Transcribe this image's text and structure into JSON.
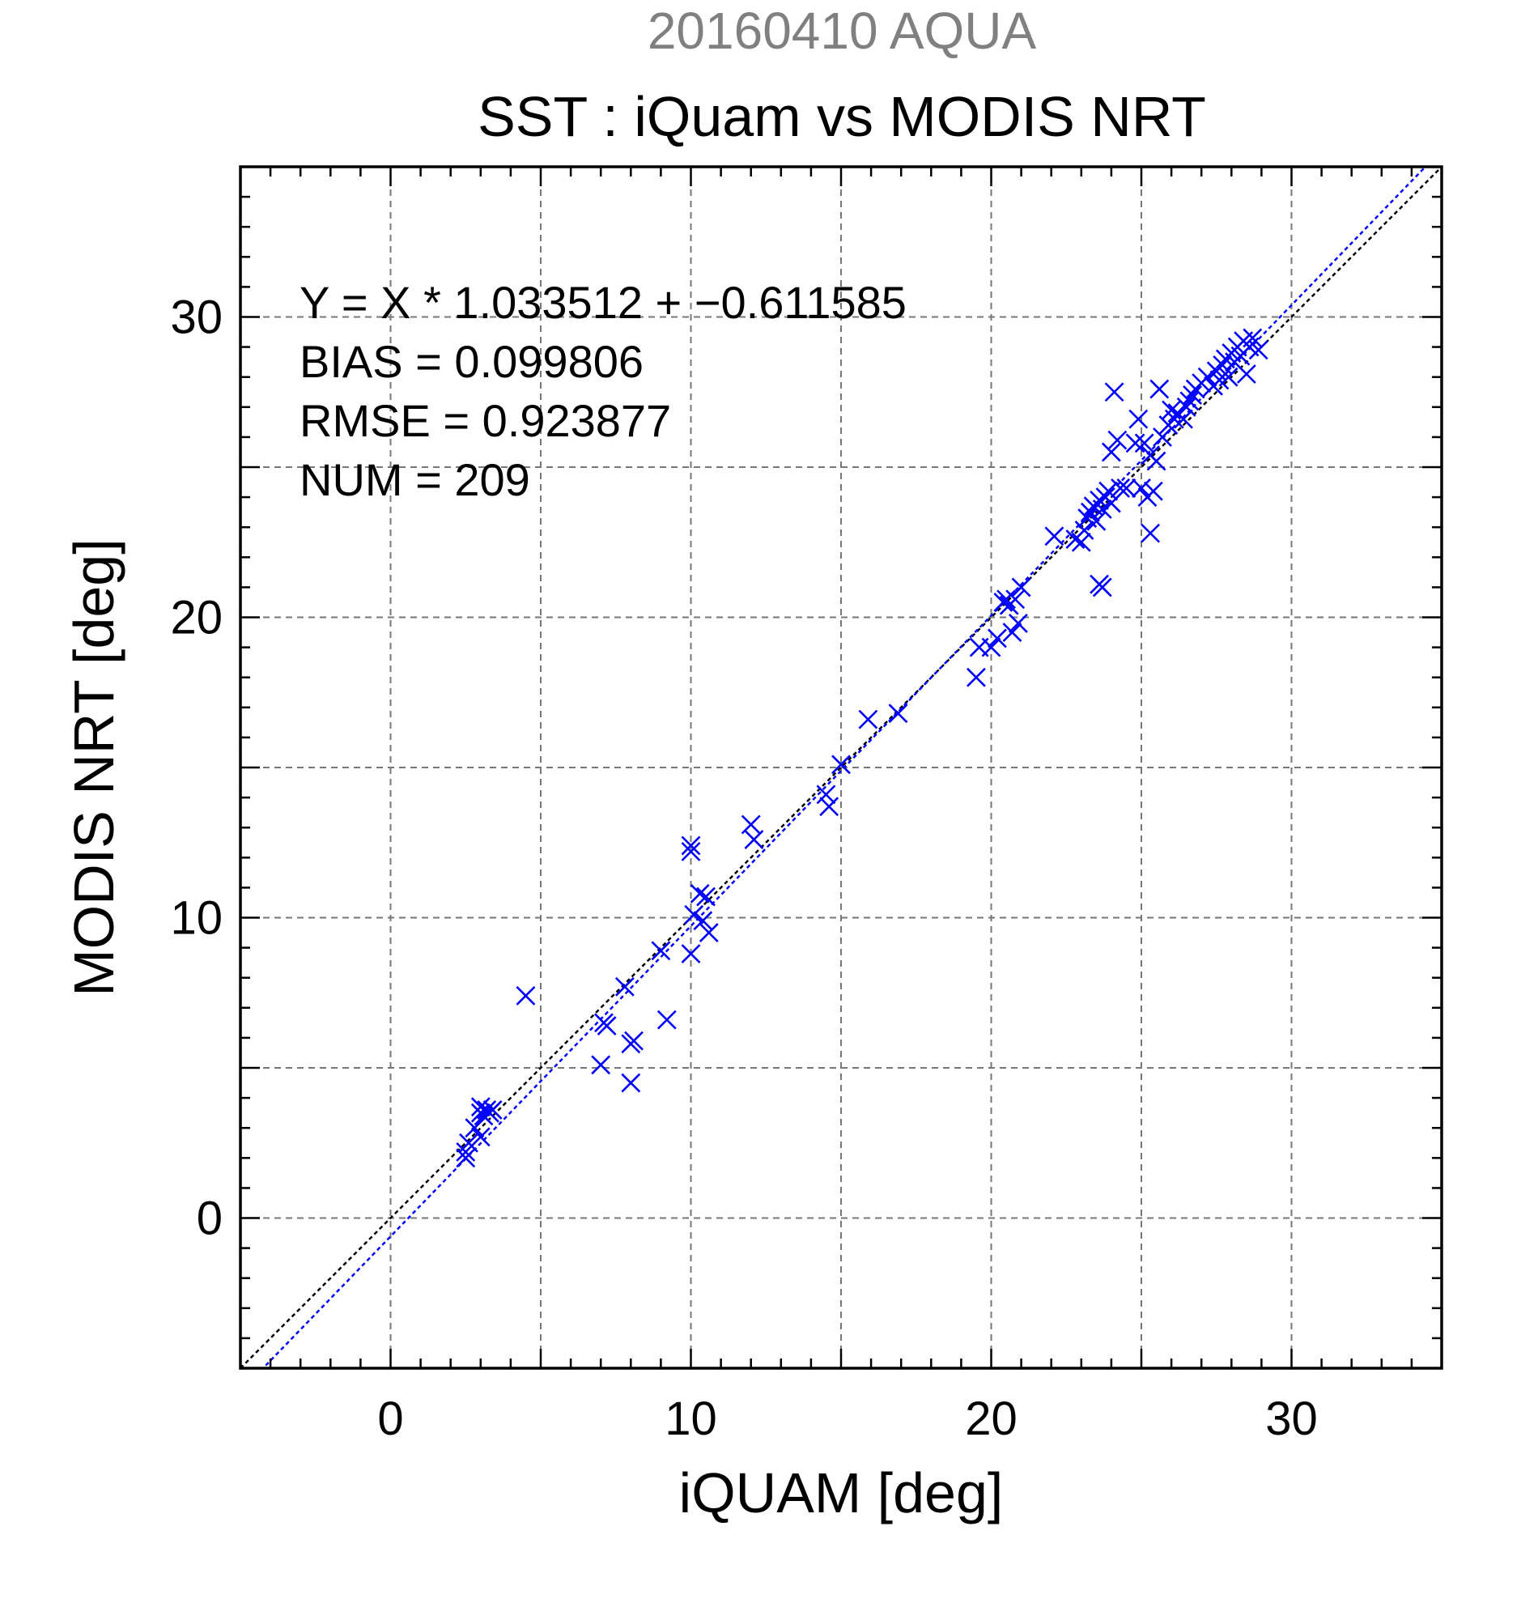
{
  "chart_data": {
    "type": "scatter",
    "supertitle": "20160410 AQUA",
    "title": "SST : iQuam vs MODIS NRT",
    "xlabel": "iQUAM [deg]",
    "ylabel": "MODIS NRT [deg]",
    "xlim": [
      -5,
      35
    ],
    "ylim": [
      -5,
      35
    ],
    "xticks": [
      0,
      10,
      20,
      30
    ],
    "yticks": [
      0,
      10,
      20,
      30
    ],
    "grid": true,
    "stats": [
      "Y = X * 1.033512 + −0.611585",
      "BIAS = 0.099806",
      "RMSE = 0.923877",
      "NUM = 209"
    ],
    "lines": [
      {
        "kind": "1:1",
        "slope": 1,
        "intercept": 0,
        "color": "#000000"
      },
      {
        "kind": "fit",
        "slope": 1.033512,
        "intercept": -0.611585,
        "color": "#0000ff"
      }
    ],
    "marker_color": "#0000ff",
    "points": [
      [
        2.5,
        2.0
      ],
      [
        2.5,
        2.2
      ],
      [
        2.6,
        2.5
      ],
      [
        2.8,
        3.0
      ],
      [
        3.0,
        3.5
      ],
      [
        3.0,
        3.7
      ],
      [
        3.1,
        3.4
      ],
      [
        3.2,
        3.6
      ],
      [
        3.3,
        3.5
      ],
      [
        3.4,
        3.6
      ],
      [
        3.0,
        2.7
      ],
      [
        4.5,
        7.4
      ],
      [
        7.0,
        5.1
      ],
      [
        7.1,
        6.5
      ],
      [
        7.2,
        6.4
      ],
      [
        7.8,
        7.7
      ],
      [
        8.0,
        5.8
      ],
      [
        8.1,
        5.9
      ],
      [
        8.0,
        4.5
      ],
      [
        9.0,
        8.9
      ],
      [
        9.2,
        6.6
      ],
      [
        10.0,
        12.4
      ],
      [
        10.0,
        12.2
      ],
      [
        10.0,
        8.8
      ],
      [
        10.1,
        10.1
      ],
      [
        10.3,
        10.8
      ],
      [
        10.4,
        9.9
      ],
      [
        10.5,
        10.7
      ],
      [
        10.6,
        9.5
      ],
      [
        12.0,
        13.1
      ],
      [
        12.1,
        12.6
      ],
      [
        14.5,
        14.1
      ],
      [
        14.6,
        13.7
      ],
      [
        15.0,
        15.1
      ],
      [
        15.9,
        16.6
      ],
      [
        16.9,
        16.8
      ],
      [
        19.5,
        18.0
      ],
      [
        19.6,
        19.0
      ],
      [
        20.0,
        19.0
      ],
      [
        20.2,
        19.3
      ],
      [
        20.4,
        20.5
      ],
      [
        20.5,
        20.6
      ],
      [
        20.6,
        20.4
      ],
      [
        20.7,
        19.5
      ],
      [
        20.8,
        20.6
      ],
      [
        20.9,
        19.8
      ],
      [
        21.0,
        21.0
      ],
      [
        22.1,
        22.7
      ],
      [
        22.8,
        22.6
      ],
      [
        23.0,
        22.5
      ],
      [
        23.1,
        22.9
      ],
      [
        23.2,
        23.3
      ],
      [
        23.3,
        23.5
      ],
      [
        23.4,
        23.7
      ],
      [
        23.5,
        23.2
      ],
      [
        23.6,
        23.9
      ],
      [
        23.7,
        23.6
      ],
      [
        23.6,
        21.1
      ],
      [
        23.7,
        21.0
      ],
      [
        23.8,
        24.0
      ],
      [
        23.9,
        24.2
      ],
      [
        24.0,
        23.8
      ],
      [
        24.0,
        25.5
      ],
      [
        24.1,
        27.5
      ],
      [
        24.2,
        25.9
      ],
      [
        24.3,
        24.3
      ],
      [
        24.5,
        24.3
      ],
      [
        24.8,
        25.8
      ],
      [
        24.9,
        26.6
      ],
      [
        25.0,
        24.3
      ],
      [
        25.1,
        25.8
      ],
      [
        25.2,
        24.0
      ],
      [
        25.3,
        25.4
      ],
      [
        25.3,
        22.8
      ],
      [
        25.4,
        24.2
      ],
      [
        25.5,
        25.2
      ],
      [
        25.6,
        27.6
      ],
      [
        25.7,
        26.0
      ],
      [
        25.9,
        26.4
      ],
      [
        26.0,
        26.9
      ],
      [
        26.1,
        26.6
      ],
      [
        26.2,
        26.8
      ],
      [
        26.4,
        26.6
      ],
      [
        26.5,
        27.0
      ],
      [
        26.6,
        27.2
      ],
      [
        26.7,
        27.4
      ],
      [
        26.8,
        27.6
      ],
      [
        27.0,
        27.8
      ],
      [
        27.2,
        28.0
      ],
      [
        27.4,
        27.7
      ],
      [
        27.5,
        28.2
      ],
      [
        27.6,
        27.9
      ],
      [
        27.7,
        28.4
      ],
      [
        27.8,
        28.6
      ],
      [
        27.9,
        28.0
      ],
      [
        28.0,
        28.8
      ],
      [
        28.1,
        28.5
      ],
      [
        28.2,
        29.0
      ],
      [
        28.3,
        28.7
      ],
      [
        28.4,
        29.2
      ],
      [
        28.5,
        28.1
      ],
      [
        28.6,
        29.0
      ],
      [
        28.7,
        29.3
      ],
      [
        28.9,
        28.9
      ]
    ]
  }
}
